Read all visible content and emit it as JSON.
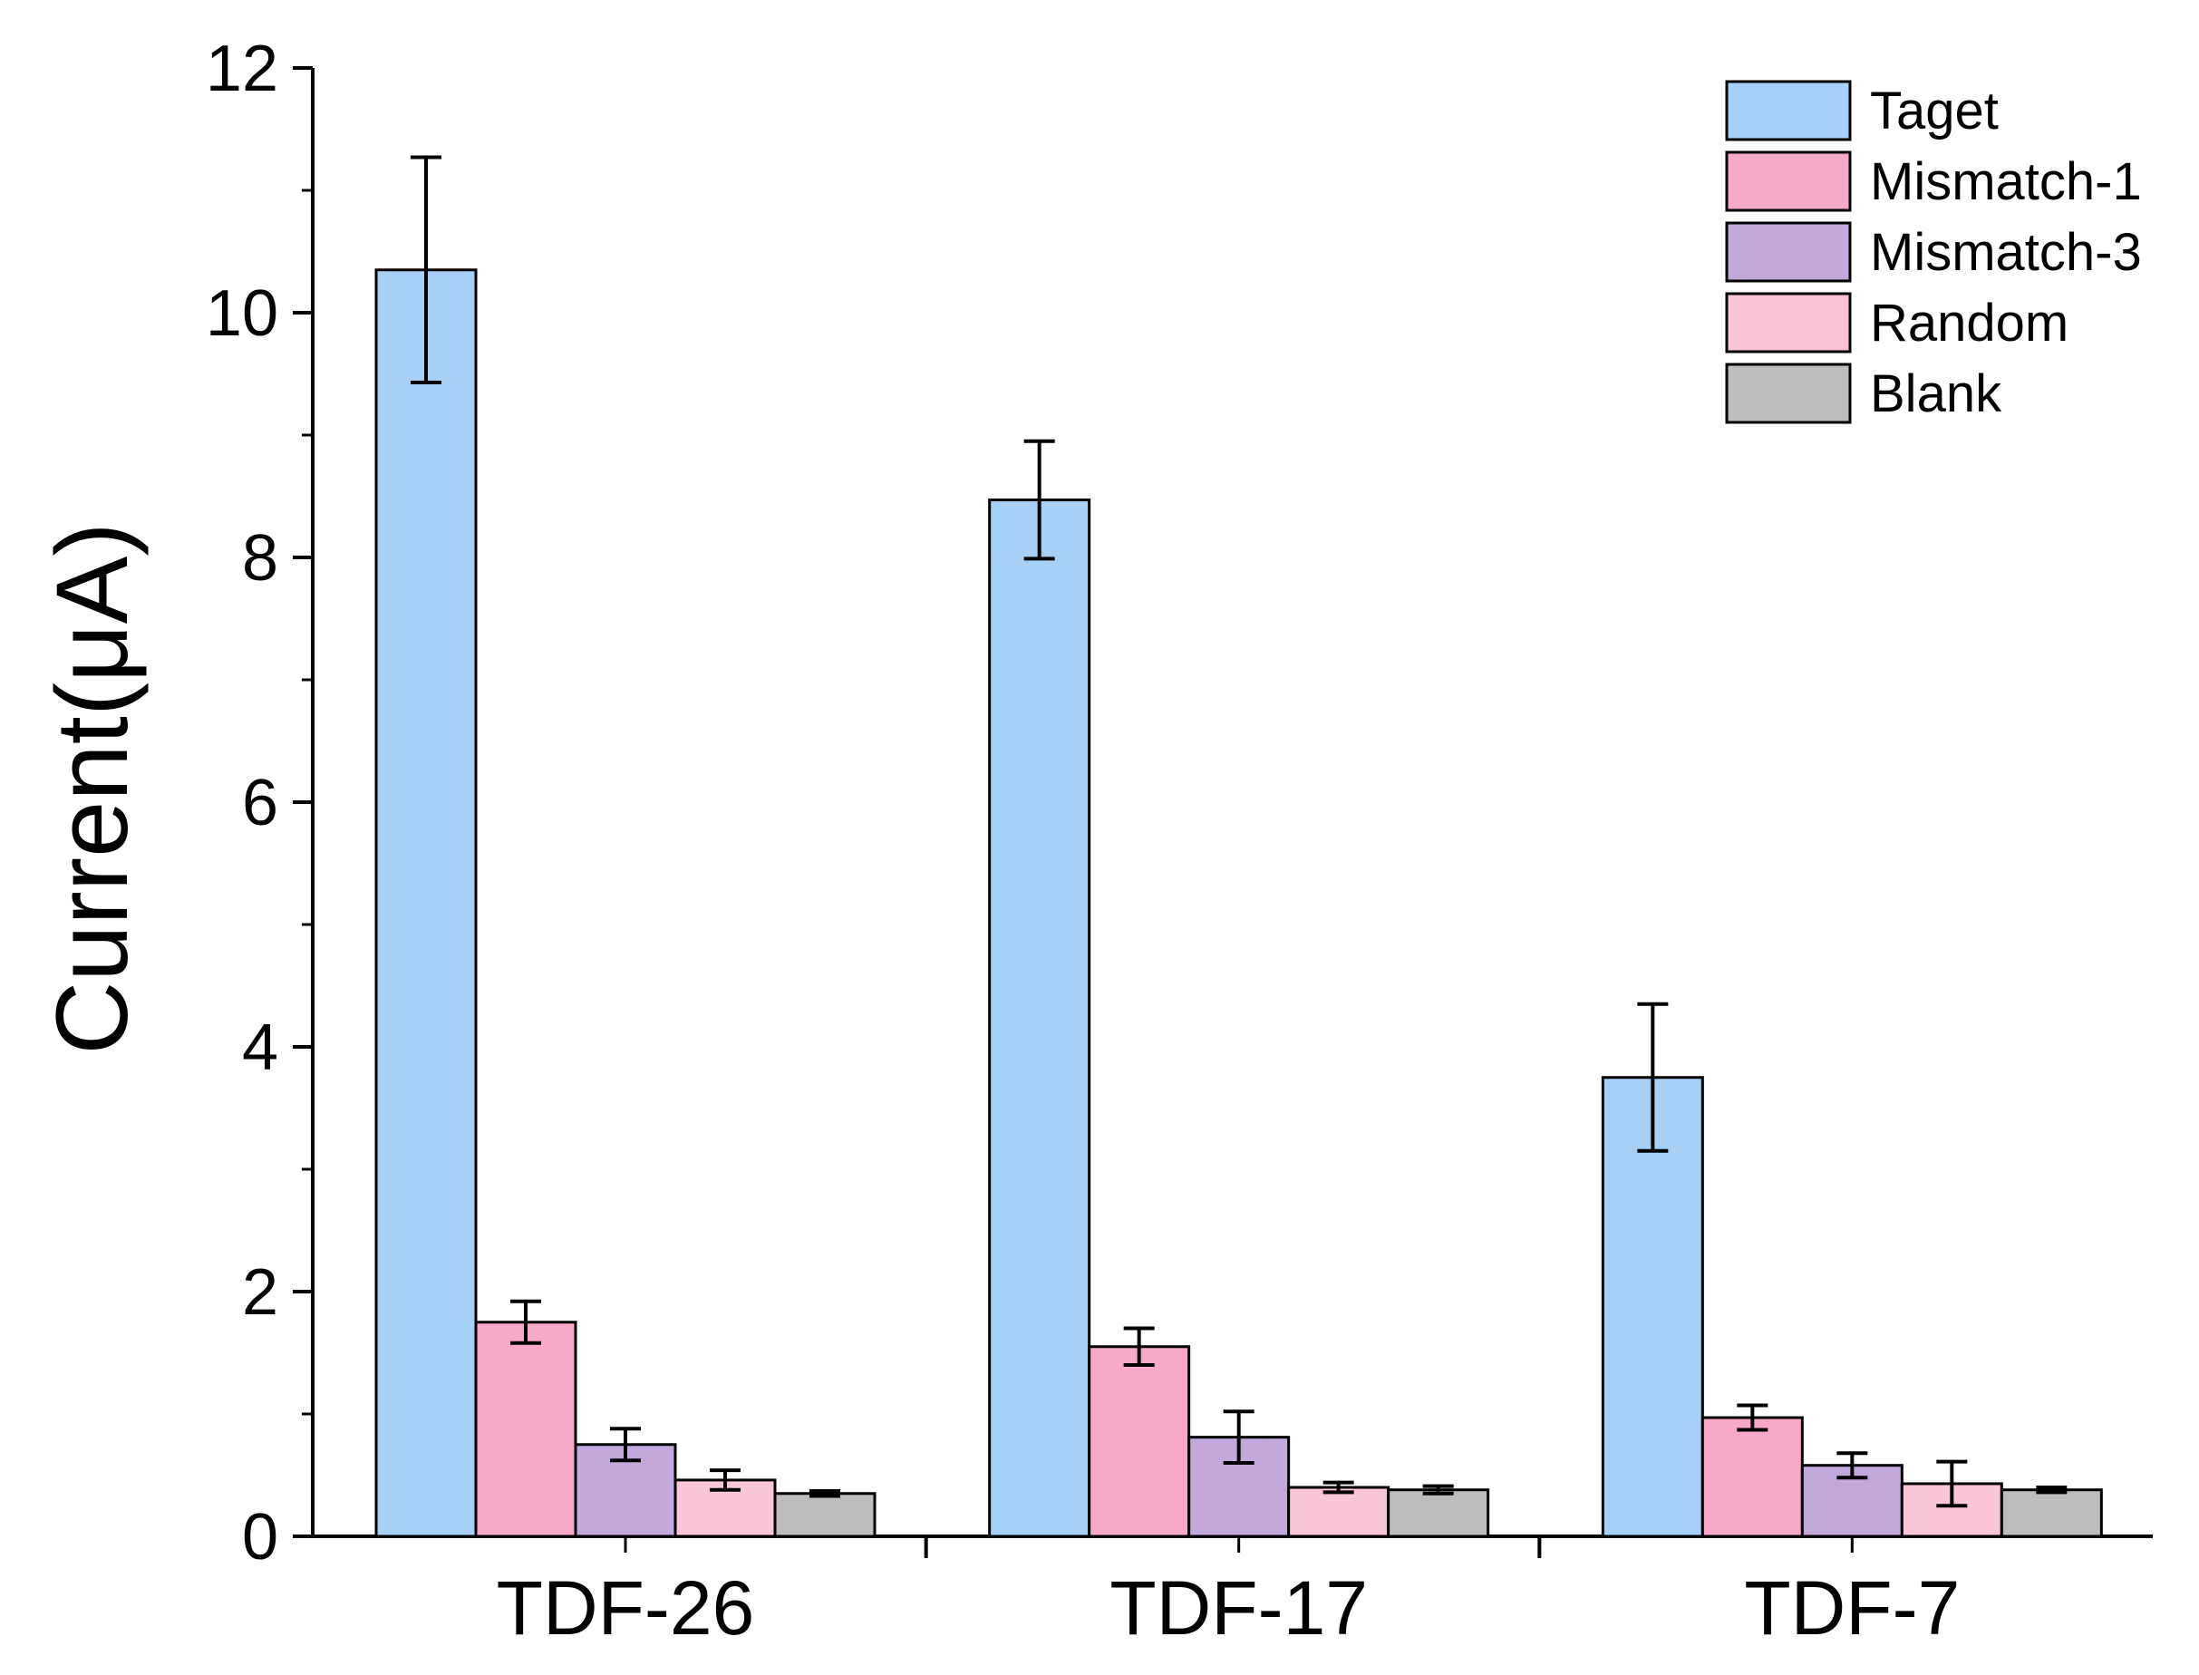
{
  "chart_data": {
    "type": "bar",
    "title": "",
    "xlabel": "",
    "ylabel": "Current(μA)",
    "ylim": [
      0,
      12
    ],
    "yticks": [
      0,
      2,
      4,
      6,
      8,
      10,
      12
    ],
    "grid": false,
    "legend_position": "top-right",
    "categories": [
      "TDF-26",
      "TDF-17",
      "TDF-7"
    ],
    "series": [
      {
        "name": "Taget",
        "color": "#a6d0f5",
        "values": [
          10.35,
          8.47,
          3.75
        ],
        "errors": [
          0.92,
          0.48,
          0.6
        ]
      },
      {
        "name": "Mismatch-1",
        "color": "#f8a8c8",
        "values": [
          1.75,
          1.55,
          0.97
        ],
        "errors": [
          0.17,
          0.15,
          0.1
        ]
      },
      {
        "name": "Mismatch-3",
        "color": "#c3a9db",
        "values": [
          0.75,
          0.81,
          0.58
        ],
        "errors": [
          0.13,
          0.21,
          0.1
        ]
      },
      {
        "name": "Random",
        "color": "#fbc6da",
        "values": [
          0.46,
          0.4,
          0.43
        ],
        "errors": [
          0.08,
          0.04,
          0.18
        ]
      },
      {
        "name": "Blank",
        "color": "#bdbdbd",
        "values": [
          0.35,
          0.38,
          0.38
        ],
        "errors": [
          0.02,
          0.03,
          0.02
        ]
      }
    ]
  }
}
